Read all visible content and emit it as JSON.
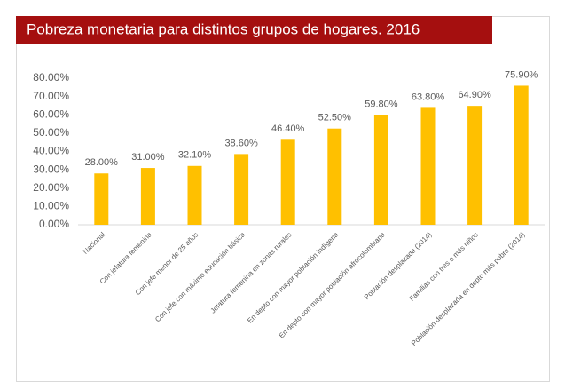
{
  "chart_data": {
    "type": "bar",
    "title": "Pobreza monetaria para distintos grupos de hogares. 2016",
    "categories": [
      "Nacional",
      "Con jefatura femenina",
      "Con jefe menor de 25 años",
      "Con jefe con máximo educación básica",
      "Jefatura femenina en zonas rurales",
      "En depto con mayor población indígena",
      "En depto con mayor población afrocolombiana",
      "Población desplazada (2014)",
      "Familias con tres o más niños",
      "Población desplazada en depto más pobre (2014)"
    ],
    "values": [
      28,
      31,
      32.1,
      38.6,
      46.4,
      52.5,
      59.8,
      63.8,
      64.9,
      75.9
    ],
    "value_labels": [
      "28.00%",
      "31.00%",
      "32.10%",
      "38.60%",
      "46.40%",
      "52.50%",
      "59.80%",
      "63.80%",
      "64.90%",
      "75.90%"
    ],
    "color": "#ffc000",
    "ylim": [
      0,
      80
    ],
    "yticks": [
      {
        "value": 0,
        "label": "0.00%"
      },
      {
        "value": 10,
        "label": "10.00%"
      },
      {
        "value": 20,
        "label": "20.00%"
      },
      {
        "value": 30,
        "label": "30.00%"
      },
      {
        "value": 40,
        "label": "40.00%"
      },
      {
        "value": 50,
        "label": "50.00%"
      },
      {
        "value": 60,
        "label": "60.00%"
      },
      {
        "value": 70,
        "label": "70.00%"
      },
      {
        "value": 80,
        "label": "80.00%"
      }
    ],
    "grid": false
  }
}
